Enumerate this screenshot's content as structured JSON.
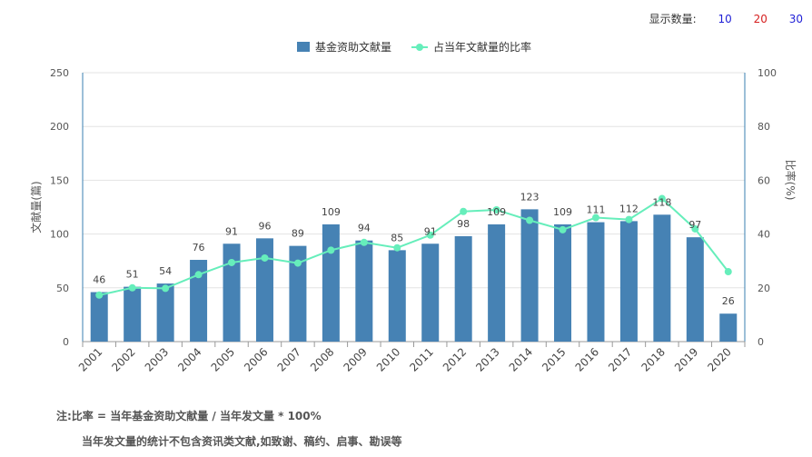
{
  "display_count": {
    "label": "显示数量:",
    "options": [
      {
        "text": "10",
        "color": "#1f1fd6"
      },
      {
        "text": "20",
        "color": "#d62020"
      },
      {
        "text": "30",
        "color": "#1f1fd6"
      }
    ]
  },
  "notes": {
    "line1": "注:比率 = 当年基金资助文献量 / 当年发文量 * 100%",
    "line2": "当年发文量的统计不包含资讯类文献,如致谢、稿约、启事、勘误等"
  },
  "chart_data": {
    "type": "bar",
    "categories": [
      "2001",
      "2002",
      "2003",
      "2004",
      "2005",
      "2006",
      "2007",
      "2008",
      "2009",
      "2010",
      "2011",
      "2012",
      "2013",
      "2014",
      "2015",
      "2016",
      "2017",
      "2018",
      "2019",
      "2020"
    ],
    "series": [
      {
        "name": "基金资助文献量",
        "type": "bar",
        "axis": "left",
        "color": "#4682b4",
        "values": [
          46,
          51,
          54,
          76,
          91,
          96,
          89,
          109,
          94,
          85,
          91,
          98,
          109,
          123,
          109,
          111,
          112,
          118,
          97,
          26
        ]
      },
      {
        "name": "占当年文献量的比率",
        "type": "line",
        "axis": "right",
        "color": "#66eebb",
        "values": [
          17.3,
          20.0,
          19.8,
          24.9,
          29.4,
          31.1,
          29.2,
          34.0,
          36.9,
          34.9,
          39.6,
          48.4,
          49.0,
          45.1,
          41.6,
          46.1,
          45.4,
          53.2,
          41.9,
          26.0
        ]
      }
    ],
    "ylabel": "文献量(篇)",
    "y2label": "比率(%)",
    "ylim": [
      0,
      250
    ],
    "y2lim": [
      0,
      100
    ],
    "yticks": [
      0,
      50,
      100,
      150,
      200,
      250
    ],
    "y2ticks": [
      0,
      20,
      40,
      60,
      80,
      100
    ],
    "legend_position": "top-center",
    "grid": true
  }
}
